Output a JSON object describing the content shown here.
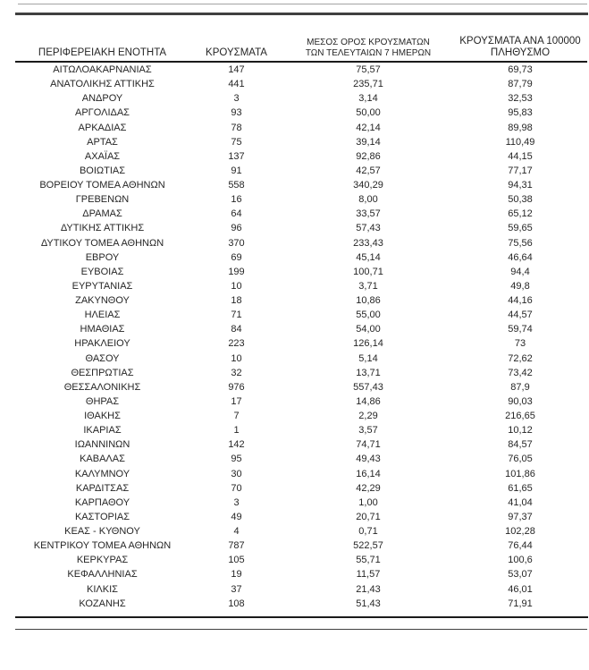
{
  "page": {
    "background": "#ffffff",
    "text_color": "#262626",
    "rule_colors": {
      "top_thin": "#a3a3a3",
      "top_thick": "#404040",
      "header_underline": "#1a1a1a",
      "bottom_heavy": "#1a1a1a",
      "bottom_thin": "#404040"
    }
  },
  "table": {
    "headers": {
      "region": "ΠΕΡΙΦΕΡΕΙΑΚΗ ΕΝΟΤΗΤΑ",
      "cases": "ΚΡΟΥΣΜΑΤΑ",
      "avg7_line1": "ΜΕΣΟΣ ΟΡΟΣ ΚΡΟΥΣΜΑΤΩΝ",
      "avg7_line2": "ΤΩΝ ΤΕΛΕΥΤΑΙΩΝ 7 ΗΜΕΡΩΝ",
      "per100k_line1": "ΚΡΟΥΣΜΑΤΑ ΑΝΑ 100000",
      "per100k_line2": "ΠΛΗΘΥΣΜΟ"
    },
    "cell_names": [
      "region-cell",
      "cases-cell",
      "avg-7day-cell",
      "per-100k-cell"
    ],
    "rows": [
      [
        "ΑΙΤΩΛΟΑΚΑΡΝΑΝΙΑΣ",
        "147",
        "75,57",
        "69,73"
      ],
      [
        "ΑΝΑΤΟΛΙΚΗΣ ΑΤΤΙΚΗΣ",
        "441",
        "235,71",
        "87,79"
      ],
      [
        "ΑΝΔΡΟΥ",
        "3",
        "3,14",
        "32,53"
      ],
      [
        "ΑΡΓΟΛΙΔΑΣ",
        "93",
        "50,00",
        "95,83"
      ],
      [
        "ΑΡΚΑΔΙΑΣ",
        "78",
        "42,14",
        "89,98"
      ],
      [
        "ΑΡΤΑΣ",
        "75",
        "39,14",
        "110,49"
      ],
      [
        "ΑΧΑΪΑΣ",
        "137",
        "92,86",
        "44,15"
      ],
      [
        "ΒΟΙΩΤΙΑΣ",
        "91",
        "42,57",
        "77,17"
      ],
      [
        "ΒΟΡΕΙΟΥ ΤΟΜΕΑ ΑΘΗΝΩΝ",
        "558",
        "340,29",
        "94,31"
      ],
      [
        "ΓΡΕΒΕΝΩΝ",
        "16",
        "8,00",
        "50,38"
      ],
      [
        "ΔΡΑΜΑΣ",
        "64",
        "33,57",
        "65,12"
      ],
      [
        "ΔΥΤΙΚΗΣ ΑΤΤΙΚΗΣ",
        "96",
        "57,43",
        "59,65"
      ],
      [
        "ΔΥΤΙΚΟΥ ΤΟΜΕΑ ΑΘΗΝΩΝ",
        "370",
        "233,43",
        "75,56"
      ],
      [
        "ΕΒΡΟΥ",
        "69",
        "45,14",
        "46,64"
      ],
      [
        "ΕΥΒΟΙΑΣ",
        "199",
        "100,71",
        "94,4"
      ],
      [
        "ΕΥΡΥΤΑΝΙΑΣ",
        "10",
        "3,71",
        "49,8"
      ],
      [
        "ΖΑΚΥΝΘΟΥ",
        "18",
        "10,86",
        "44,16"
      ],
      [
        "ΗΛΕΙΑΣ",
        "71",
        "55,00",
        "44,57"
      ],
      [
        "ΗΜΑΘΙΑΣ",
        "84",
        "54,00",
        "59,74"
      ],
      [
        "ΗΡΑΚΛΕΙΟΥ",
        "223",
        "126,14",
        "73"
      ],
      [
        "ΘΑΣΟΥ",
        "10",
        "5,14",
        "72,62"
      ],
      [
        "ΘΕΣΠΡΩΤΙΑΣ",
        "32",
        "13,71",
        "73,42"
      ],
      [
        "ΘΕΣΣΑΛΟΝΙΚΗΣ",
        "976",
        "557,43",
        "87,9"
      ],
      [
        "ΘΗΡΑΣ",
        "17",
        "14,86",
        "90,03"
      ],
      [
        "ΙΘΑΚΗΣ",
        "7",
        "2,29",
        "216,65"
      ],
      [
        "ΙΚΑΡΙΑΣ",
        "1",
        "3,57",
        "10,12"
      ],
      [
        "ΙΩΑΝΝΙΝΩΝ",
        "142",
        "74,71",
        "84,57"
      ],
      [
        "ΚΑΒΑΛΑΣ",
        "95",
        "49,43",
        "76,05"
      ],
      [
        "ΚΑΛΥΜΝΟΥ",
        "30",
        "16,14",
        "101,86"
      ],
      [
        "ΚΑΡΔΙΤΣΑΣ",
        "70",
        "42,29",
        "61,65"
      ],
      [
        "ΚΑΡΠΑΘΟΥ",
        "3",
        "1,00",
        "41,04"
      ],
      [
        "ΚΑΣΤΟΡΙΑΣ",
        "49",
        "20,71",
        "97,37"
      ],
      [
        "ΚΕΑΣ - ΚΥΘΝΟΥ",
        "4",
        "0,71",
        "102,28"
      ],
      [
        "ΚΕΝΤΡΙΚΟΥ ΤΟΜΕΑ ΑΘΗΝΩΝ",
        "787",
        "522,57",
        "76,44"
      ],
      [
        "ΚΕΡΚΥΡΑΣ",
        "105",
        "55,71",
        "100,6"
      ],
      [
        "ΚΕΦΑΛΛΗΝΙΑΣ",
        "19",
        "11,57",
        "53,07"
      ],
      [
        "ΚΙΛΚΙΣ",
        "37",
        "21,43",
        "46,01"
      ],
      [
        "ΚΟΖΑΝΗΣ",
        "108",
        "51,43",
        "71,91"
      ]
    ]
  }
}
